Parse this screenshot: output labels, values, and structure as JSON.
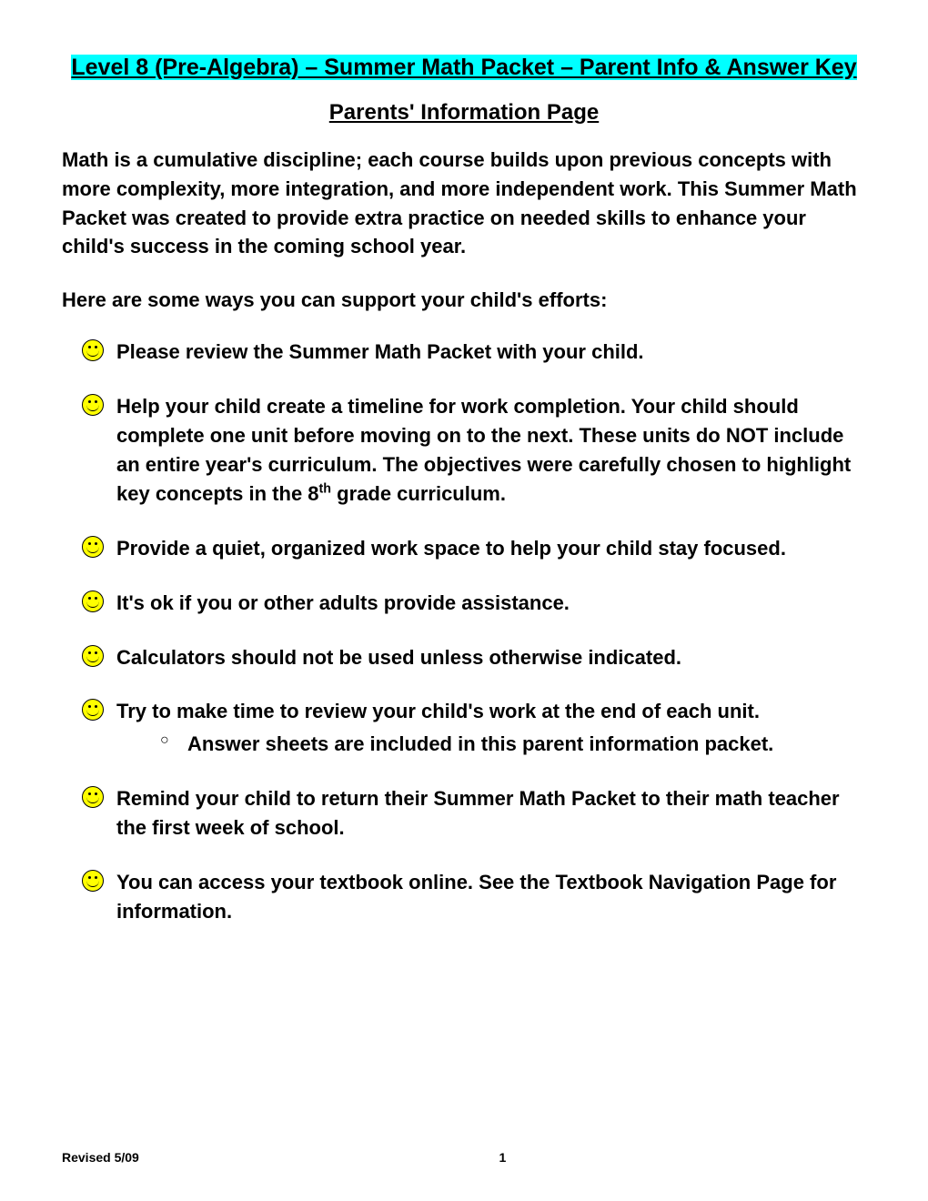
{
  "title": "Level 8 (Pre-Algebra) – Summer Math Packet – Parent Info & Answer Key",
  "subtitle": "Parents' Information Page",
  "intro": "Math is a cumulative discipline; each course builds upon previous concepts with more complexity, more integration, and more independent work.   This Summer Math Packet was created to provide extra practice on needed skills to enhance your child's success in the coming school year.",
  "lead": "Here are some ways you can support your child's efforts:",
  "bullets": [
    {
      "text": "Please review the Summer Math Packet with your child."
    },
    {
      "text_html": "Help your child create a timeline for work completion.  Your child should complete one unit before moving on to the next.  These units do NOT include an entire year's curriculum.  The objectives were carefully chosen to highlight key concepts in the 8<sup>th</sup> grade curriculum."
    },
    {
      "text": "Provide a quiet, organized work space to help your child stay focused."
    },
    {
      "text": "It's ok if you or other adults provide assistance."
    },
    {
      "text": "Calculators should not be used unless otherwise indicated."
    },
    {
      "text": "Try to make time to review your child's work at the end of each unit.",
      "sub": [
        "Answer sheets are included in this parent information packet."
      ]
    },
    {
      "text": "Remind your child to return their Summer Math Packet to their math teacher the first week of school."
    },
    {
      "text": "You can access your textbook online.  See the Textbook Navigation Page for information."
    }
  ],
  "footer": {
    "revised": "Revised 5/09",
    "page": "1"
  },
  "colors": {
    "highlight_cyan": "#00ffff",
    "highlight_yellow": "#ffff00",
    "bg": "#ffffff",
    "text": "#000000"
  }
}
